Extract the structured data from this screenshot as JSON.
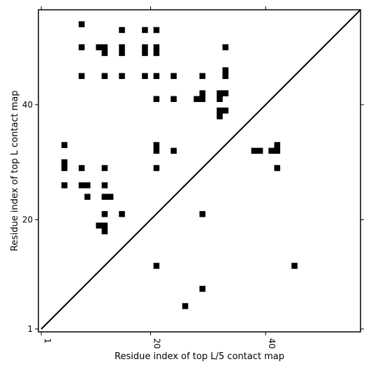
{
  "chart_data": {
    "type": "heatmap",
    "title": "",
    "xlabel": "Residue index of top L/5 contact map",
    "ylabel": "Residue index of top L contact map",
    "xlim": [
      0.5,
      56.5
    ],
    "ylim": [
      0.5,
      56.5
    ],
    "xticks": [
      1,
      20,
      40
    ],
    "yticks": [
      1,
      20,
      40
    ],
    "tick_labels_x": [
      "1",
      "20",
      "40"
    ],
    "tick_labels_y": [
      "1",
      "20",
      "40"
    ],
    "diagonal": true,
    "grid": false,
    "cell_color": "#000000",
    "contacts": [
      [
        8,
        54
      ],
      [
        15,
        53
      ],
      [
        19,
        53
      ],
      [
        21,
        53
      ],
      [
        8,
        50
      ],
      [
        11,
        50
      ],
      [
        12,
        50
      ],
      [
        15,
        50
      ],
      [
        19,
        50
      ],
      [
        21,
        50
      ],
      [
        33,
        50
      ],
      [
        12,
        49
      ],
      [
        15,
        49
      ],
      [
        19,
        49
      ],
      [
        21,
        49
      ],
      [
        33,
        46
      ],
      [
        8,
        45
      ],
      [
        12,
        45
      ],
      [
        15,
        45
      ],
      [
        19,
        45
      ],
      [
        21,
        45
      ],
      [
        24,
        45
      ],
      [
        29,
        45
      ],
      [
        33,
        45
      ],
      [
        29,
        42
      ],
      [
        32,
        42
      ],
      [
        33,
        42
      ],
      [
        21,
        41
      ],
      [
        24,
        41
      ],
      [
        28,
        41
      ],
      [
        29,
        41
      ],
      [
        32,
        41
      ],
      [
        32,
        39
      ],
      [
        33,
        39
      ],
      [
        32,
        38
      ],
      [
        5,
        33
      ],
      [
        21,
        33
      ],
      [
        42,
        33
      ],
      [
        21,
        32
      ],
      [
        24,
        32
      ],
      [
        38,
        32
      ],
      [
        39,
        32
      ],
      [
        41,
        32
      ],
      [
        42,
        32
      ],
      [
        5,
        30
      ],
      [
        5,
        29
      ],
      [
        8,
        29
      ],
      [
        12,
        29
      ],
      [
        21,
        29
      ],
      [
        42,
        29
      ],
      [
        5,
        26
      ],
      [
        8,
        26
      ],
      [
        9,
        26
      ],
      [
        12,
        26
      ],
      [
        9,
        24
      ],
      [
        12,
        24
      ],
      [
        13,
        24
      ],
      [
        12,
        21
      ],
      [
        15,
        21
      ],
      [
        29,
        21
      ],
      [
        11,
        19
      ],
      [
        12,
        19
      ],
      [
        12,
        18
      ],
      [
        21,
        12
      ],
      [
        45,
        12
      ],
      [
        29,
        8
      ],
      [
        26,
        5
      ]
    ]
  }
}
